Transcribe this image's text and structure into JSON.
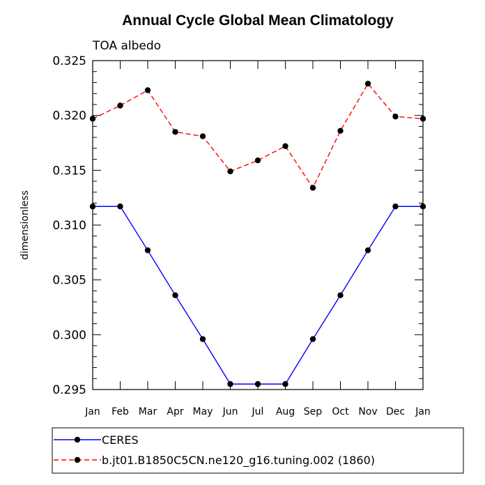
{
  "chart_data": {
    "type": "line",
    "title": "Annual Cycle Global Mean Climatology",
    "subtitle": "TOA albedo",
    "xlabel": "",
    "ylabel": "dimensionless",
    "categories": [
      "Jan",
      "Feb",
      "Mar",
      "Apr",
      "May",
      "Jun",
      "Jul",
      "Aug",
      "Sep",
      "Oct",
      "Nov",
      "Dec",
      "Jan"
    ],
    "ylim": [
      0.295,
      0.325
    ],
    "yticks": [
      "0.295",
      "0.300",
      "0.305",
      "0.310",
      "0.315",
      "0.320",
      "0.325"
    ],
    "ytick_values": [
      0.295,
      0.3,
      0.305,
      0.31,
      0.315,
      0.32,
      0.325
    ],
    "grid": false,
    "legend_position": "bottom",
    "series": [
      {
        "name": "CERES",
        "color": "#0000ff",
        "dash": "solid",
        "values": [
          0.3117,
          0.3117,
          0.3077,
          0.3036,
          0.2996,
          0.2955,
          0.2955,
          0.2955,
          0.2996,
          0.3036,
          0.3077,
          0.3117,
          0.3117
        ]
      },
      {
        "name": "b.jt01.B1850C5CN.ne120_g16.tuning.002 (1860)",
        "color": "#ff0000",
        "dash": "dashed",
        "values": [
          0.3197,
          0.3209,
          0.3223,
          0.3185,
          0.3181,
          0.3149,
          0.3159,
          0.3172,
          0.3134,
          0.3186,
          0.3229,
          0.3199,
          0.3197
        ]
      }
    ]
  }
}
